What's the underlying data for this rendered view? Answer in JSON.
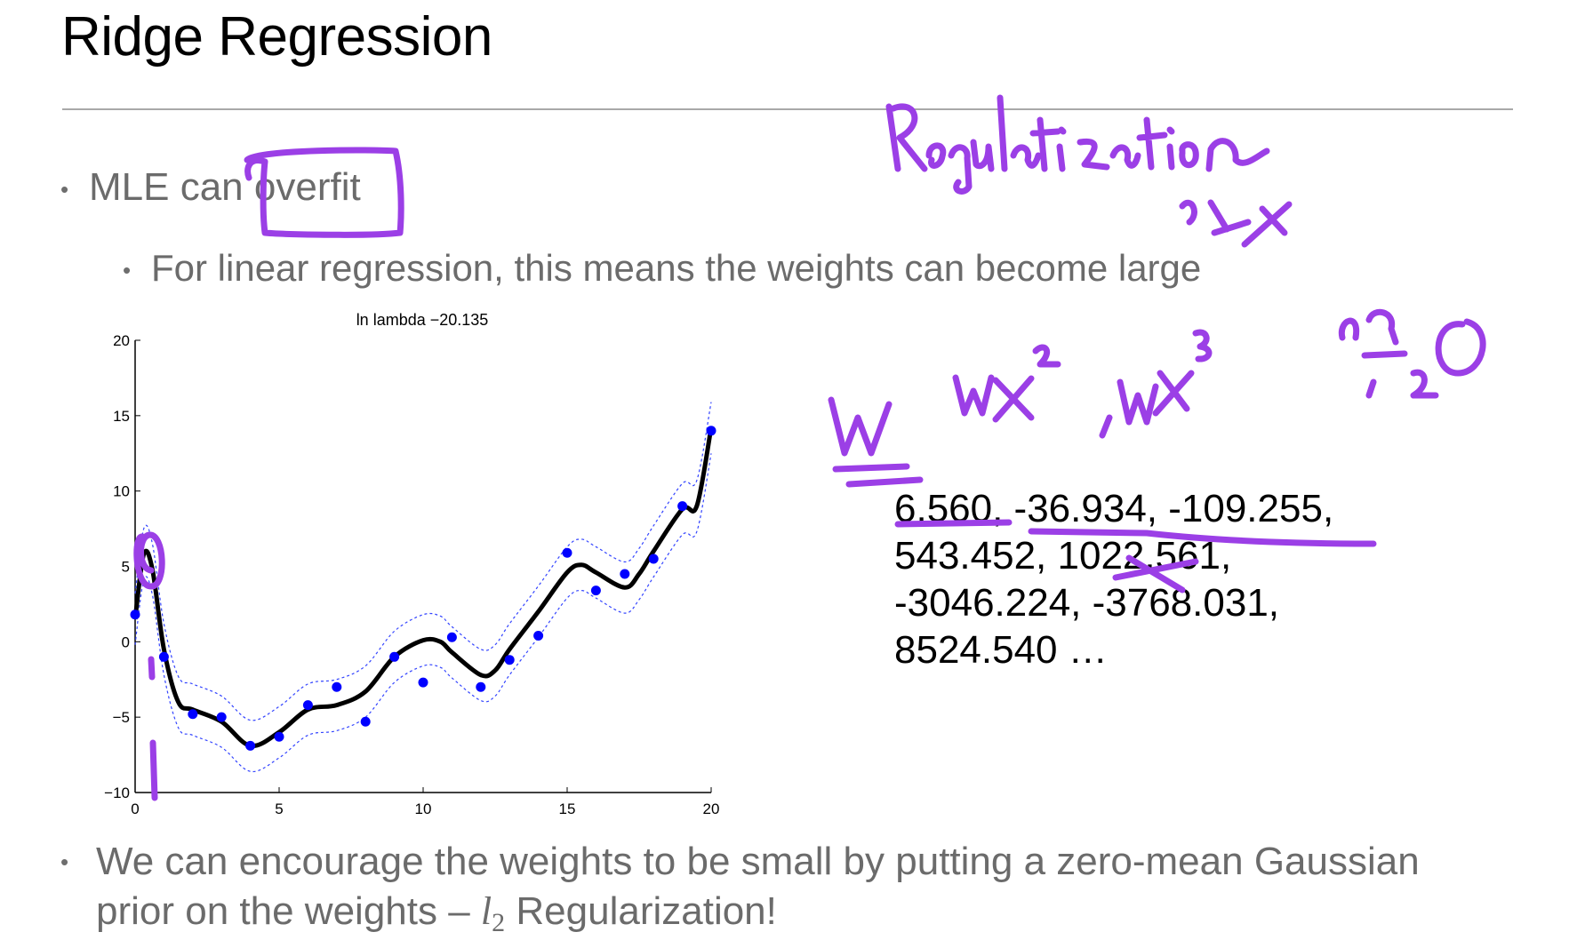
{
  "slide": {
    "title": "Ridge Regression",
    "bullets": [
      {
        "text_before": "MLE can ",
        "text_boxed": "overfit"
      },
      {
        "text": "For linear regression, this means the weights can become large"
      }
    ],
    "bullet3": {
      "line1": "We can encourage the weights to be small by putting a zero-mean Gaussian",
      "line2_prefix": "prior on the weights – ",
      "math_l": "l",
      "math_sub": "2",
      "line2_suffix": " Regularization!"
    },
    "weights_lines": [
      "6.560, -36.934, -109.255,",
      "543.452, 1022.561,",
      "-3046.224, -3768.031,",
      "8524.540 …"
    ]
  },
  "annotations": {
    "ink_color": "#9b3fe6",
    "handwriting": [
      "Regularization",
      "W",
      "wx², wx³"
    ]
  },
  "chart_data": {
    "type": "line",
    "title": "ln lambda −20.135",
    "xlim": [
      0,
      20
    ],
    "ylim": [
      -10,
      20
    ],
    "xticks": [
      "0",
      "5",
      "10",
      "15",
      "20"
    ],
    "yticks": [
      "−10",
      "−5",
      "0",
      "5",
      "10",
      "15",
      "20"
    ],
    "grid": false,
    "points": {
      "color": "#0000ff",
      "x": [
        0,
        1,
        2,
        3,
        4,
        5,
        6,
        7,
        8,
        9,
        10,
        11,
        12,
        13,
        14,
        15,
        16,
        17,
        18,
        19,
        20
      ],
      "y": [
        1.8,
        -1.0,
        -4.8,
        -5.0,
        -6.9,
        -6.3,
        -4.2,
        -3.0,
        -5.3,
        -1.0,
        -2.7,
        0.3,
        -3.0,
        -1.2,
        0.4,
        5.9,
        3.4,
        4.5,
        5.5,
        9.0,
        14.0
      ]
    },
    "fit": {
      "color": "#000000",
      "x": [
        0,
        0.3,
        0.6,
        1,
        1.5,
        2,
        3,
        4,
        5,
        6,
        7,
        8,
        9,
        10,
        10.6,
        11,
        12,
        12.5,
        13,
        14,
        15,
        15.5,
        16,
        17,
        17.5,
        18,
        19,
        19.5,
        20
      ],
      "y": [
        1.5,
        5.8,
        4.8,
        -0.5,
        -4.0,
        -4.5,
        -5.3,
        -6.9,
        -6.0,
        -4.5,
        -4.2,
        -3.3,
        -1.0,
        0.1,
        0.0,
        -0.7,
        -2.2,
        -1.9,
        -0.5,
        2.0,
        4.6,
        5.1,
        4.6,
        3.6,
        4.5,
        6.0,
        8.8,
        9.0,
        14.2
      ]
    },
    "band_offset": 1.7,
    "band_color": "#3344ff"
  }
}
